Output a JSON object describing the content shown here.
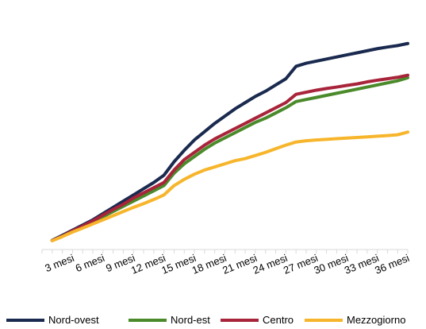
{
  "chart_data": {
    "type": "line",
    "x": [
      1,
      2,
      3,
      4,
      5,
      6,
      7,
      8,
      9,
      10,
      11,
      12,
      13,
      14,
      15,
      16,
      17,
      18,
      19,
      20,
      21,
      22,
      23,
      24,
      25,
      26,
      27,
      28,
      29,
      30,
      31,
      32,
      33,
      34,
      35,
      36
    ],
    "categories": [
      "3 mesi",
      "6 mesi",
      "9 mesi",
      "12 mesi",
      "15 mesi",
      "18 mesi",
      "21 mesi",
      "24 mesi",
      "27 mesi",
      "30 mesi",
      "33 mesi",
      "36 mesi"
    ],
    "category_months": [
      3,
      6,
      9,
      12,
      15,
      18,
      21,
      24,
      27,
      30,
      33,
      36
    ],
    "series": [
      {
        "name": "Nord-ovest",
        "color": "#1a2a4f",
        "values": [
          0.6,
          3.0,
          5.5,
          8.0,
          10.5,
          13.5,
          16.5,
          19.5,
          22.5,
          25.5,
          28.5,
          32.0,
          38.5,
          44.0,
          49.0,
          53.0,
          57.0,
          60.5,
          64.0,
          67.0,
          70.0,
          72.5,
          75.5,
          78.5,
          84.5,
          86.0,
          87.0,
          88.0,
          89.0,
          90.0,
          91.0,
          92.0,
          93.0,
          93.8,
          94.5,
          95.5
        ]
      },
      {
        "name": "Nord-est",
        "color": "#4a8a2a",
        "values": [
          0.5,
          2.5,
          5.0,
          7.2,
          9.5,
          12.0,
          14.5,
          17.0,
          19.5,
          22.0,
          24.5,
          27.0,
          33.0,
          37.5,
          41.0,
          44.5,
          47.5,
          50.0,
          52.5,
          55.0,
          57.5,
          59.5,
          62.0,
          64.5,
          67.5,
          68.5,
          69.5,
          70.5,
          71.5,
          72.5,
          73.5,
          74.5,
          75.5,
          76.5,
          77.5,
          79.0
        ]
      },
      {
        "name": "Centro",
        "color": "#a8243a",
        "values": [
          0.5,
          2.6,
          5.2,
          7.5,
          10.0,
          12.8,
          15.5,
          18.0,
          21.0,
          23.5,
          26.0,
          28.5,
          34.5,
          39.5,
          43.0,
          46.5,
          49.5,
          52.0,
          54.5,
          57.0,
          59.5,
          62.0,
          64.5,
          67.0,
          71.0,
          72.0,
          73.0,
          73.8,
          74.5,
          75.3,
          76.0,
          77.0,
          77.8,
          78.5,
          79.2,
          80.2
        ]
      },
      {
        "name": "Mezzogiorno",
        "color": "#f7b52b",
        "values": [
          0.4,
          2.4,
          4.6,
          6.5,
          8.5,
          10.5,
          12.5,
          14.5,
          16.5,
          18.3,
          20.3,
          22.5,
          27.0,
          30.0,
          32.5,
          34.5,
          36.0,
          37.5,
          39.0,
          40.0,
          41.5,
          43.0,
          44.8,
          46.5,
          48.0,
          48.6,
          49.0,
          49.3,
          49.6,
          49.9,
          50.2,
          50.5,
          50.8,
          51.1,
          51.5,
          52.8
        ]
      }
    ],
    "ylim": [
      0,
      100
    ],
    "xlim": [
      0,
      36
    ],
    "grid": false,
    "legend": "bottom"
  }
}
